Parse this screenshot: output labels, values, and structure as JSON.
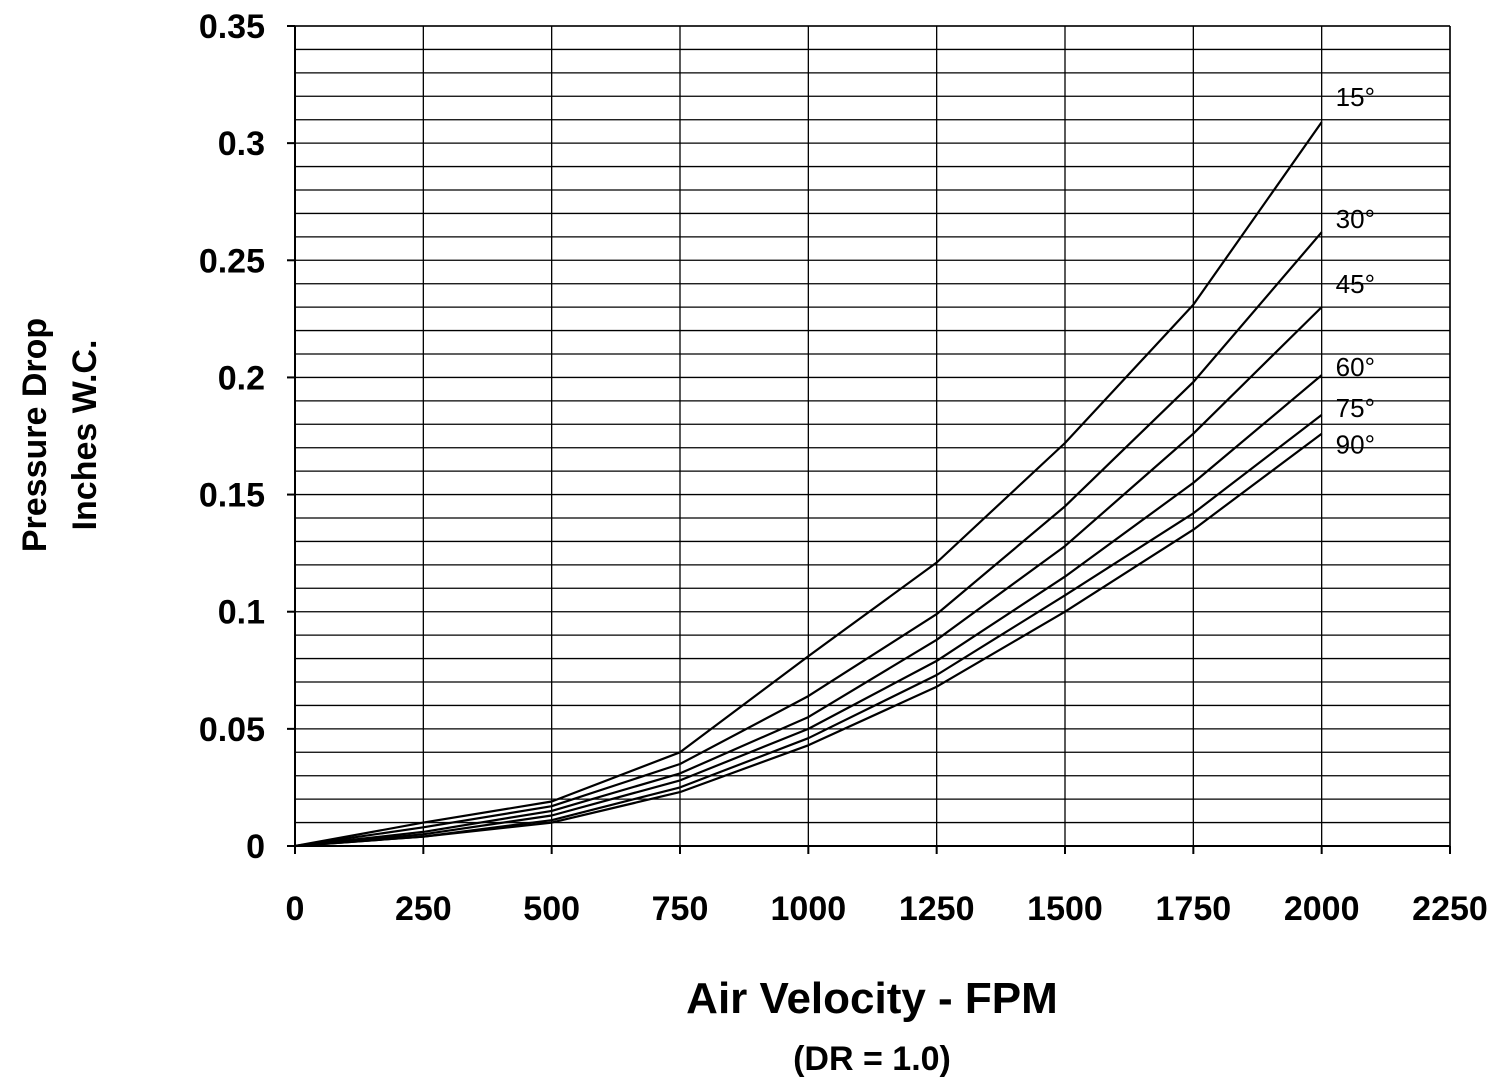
{
  "chart_data": {
    "type": "line",
    "title": "",
    "xlabel": "Air Velocity - FPM",
    "xlabel_sub": "(DR = 1.0)",
    "ylabel_line1": "Pressure Drop",
    "ylabel_line2": "Inches W.C.",
    "xlim": [
      0,
      2250
    ],
    "ylim": [
      0,
      0.35
    ],
    "x_ticks": [
      0,
      250,
      500,
      750,
      1000,
      1250,
      1500,
      1750,
      2000,
      2250
    ],
    "x_tick_labels": [
      "0",
      "250",
      "500",
      "750",
      "1000",
      "1250",
      "1500",
      "1750",
      "2000",
      "2250"
    ],
    "y_ticks": [
      0,
      0.05,
      0.1,
      0.15,
      0.2,
      0.25,
      0.3,
      0.35
    ],
    "y_tick_labels": [
      "0",
      "0.05",
      "0.1",
      "0.15",
      "0.2",
      "0.25",
      "0.3",
      "0.35"
    ],
    "y_minor_step": 0.01,
    "grid": true,
    "x": [
      0,
      250,
      500,
      750,
      1000,
      1250,
      1500,
      1750,
      2000
    ],
    "series": [
      {
        "name": "15°",
        "values": [
          0,
          0.01,
          0.019,
          0.04,
          0.081,
          0.121,
          0.172,
          0.231,
          0.309
        ]
      },
      {
        "name": "30°",
        "values": [
          0,
          0.008,
          0.017,
          0.035,
          0.064,
          0.099,
          0.145,
          0.198,
          0.262
        ]
      },
      {
        "name": "45°",
        "values": [
          0,
          0.006,
          0.015,
          0.031,
          0.055,
          0.088,
          0.128,
          0.176,
          0.23
        ]
      },
      {
        "name": "60°",
        "values": [
          0,
          0.005,
          0.013,
          0.028,
          0.05,
          0.079,
          0.115,
          0.155,
          0.201
        ]
      },
      {
        "name": "75°",
        "values": [
          0,
          0.004,
          0.011,
          0.025,
          0.046,
          0.073,
          0.107,
          0.142,
          0.184
        ]
      },
      {
        "name": "90°",
        "values": [
          0,
          0.004,
          0.01,
          0.023,
          0.043,
          0.068,
          0.1,
          0.135,
          0.176
        ]
      }
    ],
    "line_color": "#000000",
    "grid_color": "#000000"
  }
}
